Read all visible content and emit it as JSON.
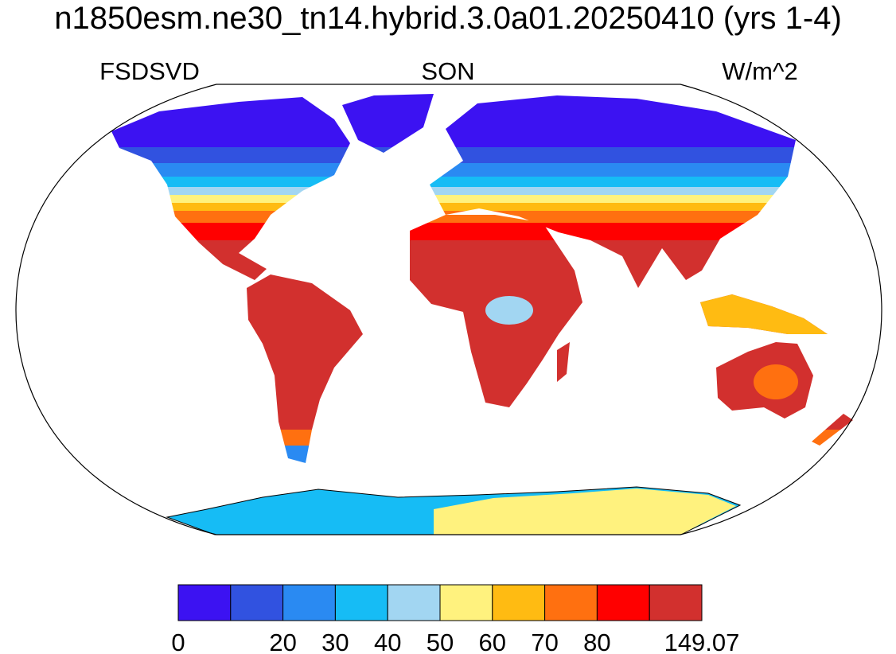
{
  "header": {
    "title": "n1850esm.ne30_tn14.hybrid.3.0a01.20250410 (yrs 1-4)",
    "left": "FSDSVD",
    "center": "SON",
    "right": "W/m^2"
  },
  "colorbar": {
    "colors": [
      "#3c12f2",
      "#3152e0",
      "#2a8af2",
      "#16bcf5",
      "#a2d6f2",
      "#fff27e",
      "#ffbb12",
      "#ff7010",
      "#ff0000",
      "#d2302e"
    ],
    "labels": [
      "0",
      null,
      "20",
      "30",
      "40",
      "50",
      "60",
      "70",
      "80",
      null,
      "149.07"
    ]
  }
}
